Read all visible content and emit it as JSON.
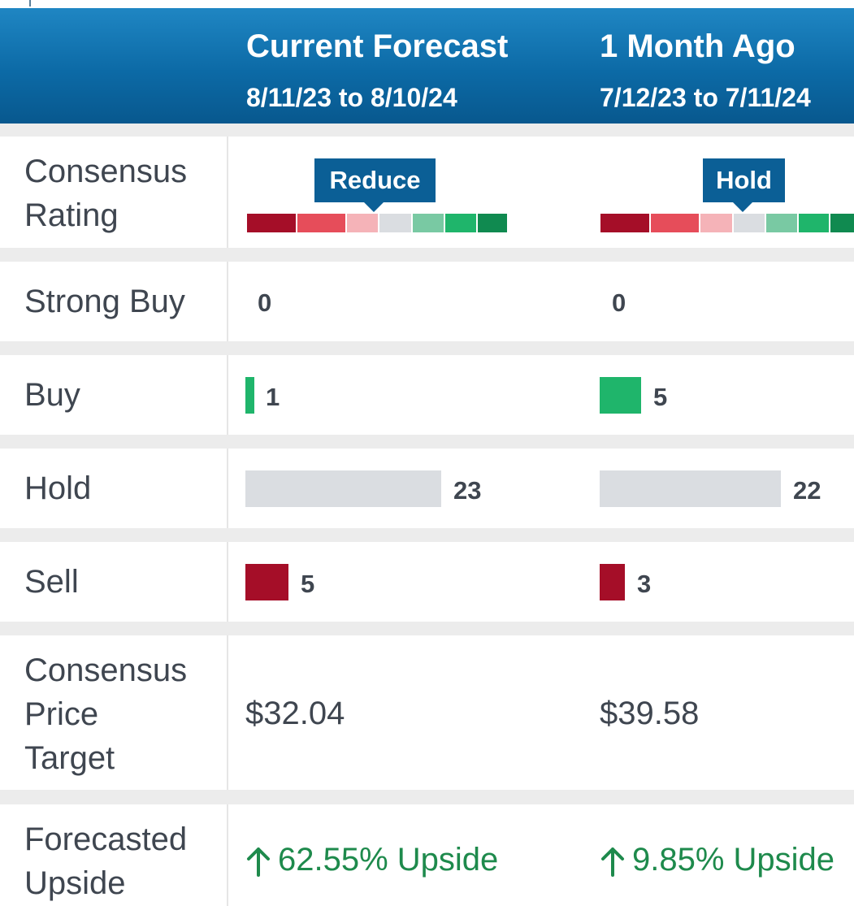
{
  "columns": [
    {
      "title": "Current Forecast",
      "range": "8/11/23 to 8/10/24"
    },
    {
      "title": "1 Month Ago",
      "range": "7/12/23 to 7/11/24"
    }
  ],
  "colors": {
    "header": "#0c6aa6",
    "strong_sell": "#a50e28",
    "sell_scale": "#e64d5a",
    "moderate_sell": "#f5b3b8",
    "hold": "#dadde1",
    "moderate_buy": "#79c9a3",
    "buy": "#1fb56b",
    "strong_buy": "#108a50",
    "upside": "#1e8a4c"
  },
  "rows": {
    "consensus_rating": {
      "label": [
        "Consensus",
        "Rating"
      ],
      "values": [
        "Reduce",
        "Hold"
      ]
    },
    "strong_buy": {
      "label": "Strong Buy",
      "values": [
        "0",
        "0"
      ]
    },
    "buy": {
      "label": "Buy",
      "values": [
        "1",
        "5"
      ]
    },
    "hold": {
      "label": "Hold",
      "values": [
        "23",
        "22"
      ]
    },
    "sell": {
      "label": "Sell",
      "values": [
        "5",
        "3"
      ]
    },
    "price_target": {
      "label": [
        "Consensus",
        "Price",
        "Target"
      ],
      "values": [
        "$32.04",
        "$39.58"
      ]
    },
    "upside": {
      "label": [
        "Forecasted",
        "Upside"
      ],
      "values": [
        "62.55% Upside",
        "9.85% Upside"
      ],
      "icon": "arrow-up-icon"
    }
  }
}
